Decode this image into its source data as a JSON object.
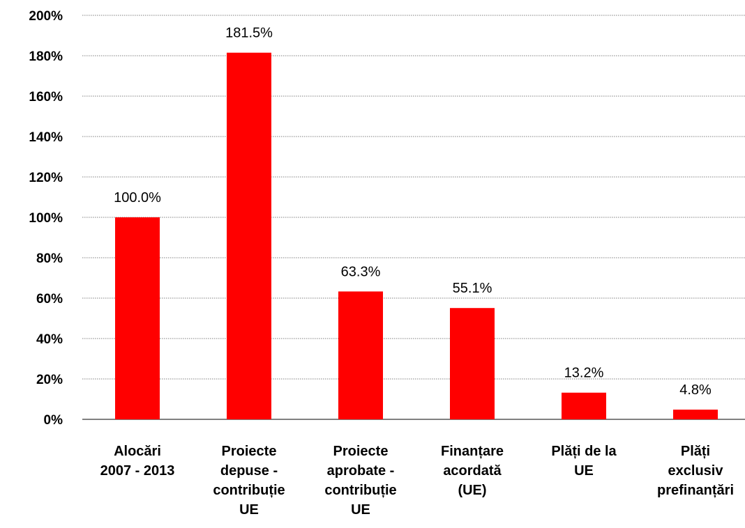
{
  "chart_data": {
    "type": "bar",
    "categories": [
      [
        "Alocări",
        "2007  - 2013"
      ],
      [
        "Proiecte",
        "depuse -",
        "contribuție",
        "UE"
      ],
      [
        "Proiecte",
        "aprobate -",
        "contribuție",
        "UE"
      ],
      [
        "Finanțare",
        "acordată",
        "(UE)"
      ],
      [
        "Plăți de la",
        "UE"
      ],
      [
        "Plăți",
        "exclusiv",
        "prefinanțări"
      ]
    ],
    "values": [
      100.0,
      181.5,
      63.3,
      55.1,
      13.2,
      4.8
    ],
    "data_labels": [
      "100.0%",
      "181.5%",
      "63.3%",
      "55.1%",
      "13.2%",
      "4.8%"
    ],
    "y_ticks": [
      "0%",
      "20%",
      "40%",
      "60%",
      "80%",
      "100%",
      "120%",
      "140%",
      "160%",
      "180%",
      "200%"
    ],
    "ylim": [
      0,
      200
    ],
    "grid": true,
    "legend": "none",
    "bar_color": "#ff0000",
    "gridline_color": "#7f7f7f"
  }
}
